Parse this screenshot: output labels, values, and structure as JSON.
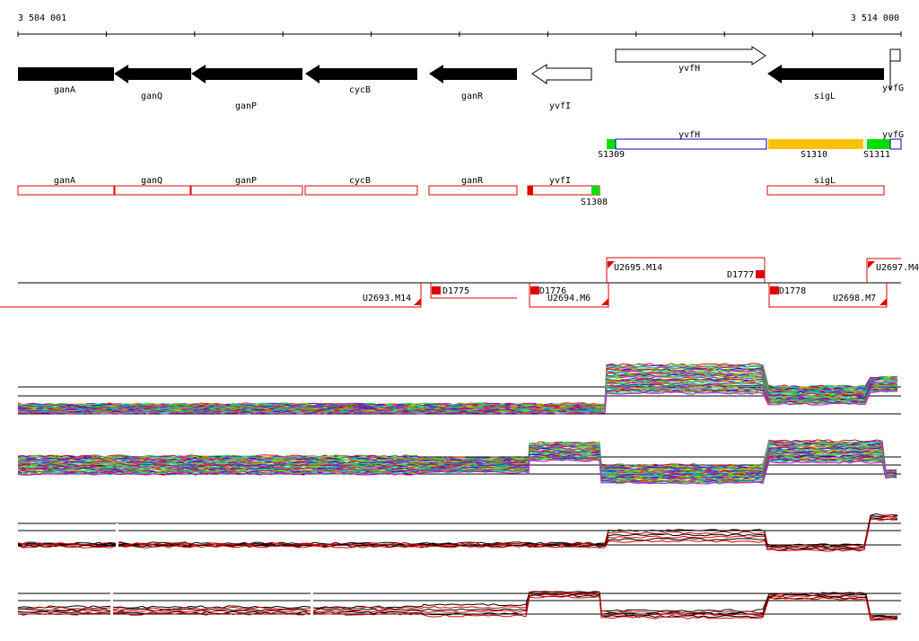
{
  "ruler": {
    "start": "3 504 001",
    "end": "3 514 000"
  },
  "genes": [
    "ganA",
    "ganQ",
    "ganP",
    "cycB",
    "ganR",
    "yvfI",
    "yvfH",
    "sigL",
    "yvfG"
  ],
  "segment_genes": [
    "yvfH",
    "yvfG"
  ],
  "segments": [
    "S1309",
    "S1310",
    "S1311",
    "S1308"
  ],
  "operons": [
    "ganA",
    "ganQ",
    "ganP",
    "cycB",
    "ganR",
    "yvfI",
    "sigL"
  ],
  "transcripts": [
    "U2693.M14",
    "D1775",
    "D1776",
    "U2694.M6",
    "U2695.M14",
    "D1777",
    "D1778",
    "U2697.M4",
    "U2698.M7"
  ]
}
